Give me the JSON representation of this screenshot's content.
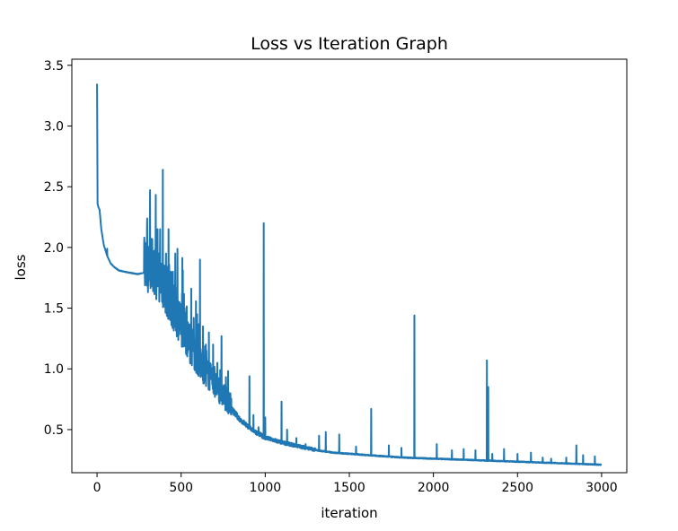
{
  "chart_data": {
    "type": "line",
    "title": "Loss vs Iteration Graph",
    "xlabel": "iteration",
    "ylabel": "loss",
    "xlim": [
      -150,
      3150
    ],
    "ylim": [
      0.145,
      3.55
    ],
    "xticks": [
      0,
      500,
      1000,
      1500,
      2000,
      2500,
      3000
    ],
    "yticks": [
      0.5,
      1.0,
      1.5,
      2.0,
      2.5,
      3.0,
      3.5
    ],
    "xtick_labels": [
      "0",
      "500",
      "1000",
      "1500",
      "2000",
      "2500",
      "3000"
    ],
    "ytick_labels": [
      "0.5",
      "1.0",
      "1.5",
      "2.0",
      "2.5",
      "3.0",
      "3.5"
    ],
    "grid": false,
    "legend": "none",
    "series_color": "#1f77b4",
    "n_points": 3000,
    "series": [
      {
        "x": [
          0,
          3,
          8,
          15,
          25,
          40,
          60,
          80,
          100,
          130,
          160,
          200,
          240,
          280,
          320,
          360,
          400,
          450,
          500,
          550,
          600,
          650,
          700,
          750,
          800,
          850,
          900,
          950,
          1000,
          1100,
          1200,
          1300,
          1400,
          1500,
          1600,
          1700,
          1800,
          1900,
          2000,
          2100,
          2200,
          2300,
          2400,
          2500,
          2600,
          2700,
          2800,
          2900,
          2999
        ],
        "y": [
          3.35,
          2.36,
          2.33,
          2.31,
          2.15,
          2.02,
          1.93,
          1.87,
          1.84,
          1.81,
          1.8,
          1.79,
          1.78,
          1.79,
          1.76,
          1.7,
          1.6,
          1.45,
          1.3,
          1.15,
          1.02,
          0.92,
          0.83,
          0.74,
          0.66,
          0.58,
          0.52,
          0.47,
          0.43,
          0.39,
          0.36,
          0.33,
          0.31,
          0.3,
          0.29,
          0.28,
          0.27,
          0.265,
          0.26,
          0.255,
          0.25,
          0.245,
          0.24,
          0.235,
          0.23,
          0.225,
          0.22,
          0.215,
          0.21
        ]
      }
    ],
    "spikes": [
      {
        "x": 60,
        "y": 1.99
      },
      {
        "x": 290,
        "y": 1.92
      },
      {
        "x": 310,
        "y": 1.95
      },
      {
        "x": 330,
        "y": 1.92
      },
      {
        "x": 360,
        "y": 2.15
      },
      {
        "x": 375,
        "y": 2.15
      },
      {
        "x": 391,
        "y": 2.64
      },
      {
        "x": 410,
        "y": 1.95
      },
      {
        "x": 425,
        "y": 2.15
      },
      {
        "x": 440,
        "y": 1.8
      },
      {
        "x": 465,
        "y": 1.95
      },
      {
        "x": 490,
        "y": 1.55
      },
      {
        "x": 505,
        "y": 1.62
      },
      {
        "x": 530,
        "y": 1.5
      },
      {
        "x": 560,
        "y": 1.66
      },
      {
        "x": 575,
        "y": 1.42
      },
      {
        "x": 595,
        "y": 1.45
      },
      {
        "x": 612,
        "y": 1.9
      },
      {
        "x": 630,
        "y": 1.35
      },
      {
        "x": 650,
        "y": 1.15
      },
      {
        "x": 665,
        "y": 1.3
      },
      {
        "x": 690,
        "y": 1.2
      },
      {
        "x": 715,
        "y": 1.05
      },
      {
        "x": 740,
        "y": 1.27
      },
      {
        "x": 760,
        "y": 0.72
      },
      {
        "x": 810,
        "y": 0.65
      },
      {
        "x": 906,
        "y": 0.94
      },
      {
        "x": 930,
        "y": 0.62
      },
      {
        "x": 960,
        "y": 0.52
      },
      {
        "x": 991,
        "y": 2.2
      },
      {
        "x": 1000,
        "y": 0.6
      },
      {
        "x": 1097,
        "y": 0.73
      },
      {
        "x": 1130,
        "y": 0.5
      },
      {
        "x": 1185,
        "y": 0.43
      },
      {
        "x": 1240,
        "y": 0.38
      },
      {
        "x": 1320,
        "y": 0.45
      },
      {
        "x": 1360,
        "y": 0.48
      },
      {
        "x": 1440,
        "y": 0.46
      },
      {
        "x": 1540,
        "y": 0.36
      },
      {
        "x": 1630,
        "y": 0.67
      },
      {
        "x": 1735,
        "y": 0.37
      },
      {
        "x": 1810,
        "y": 0.35
      },
      {
        "x": 1887,
        "y": 1.44
      },
      {
        "x": 2020,
        "y": 0.38
      },
      {
        "x": 2110,
        "y": 0.33
      },
      {
        "x": 2180,
        "y": 0.34
      },
      {
        "x": 2250,
        "y": 0.33
      },
      {
        "x": 2318,
        "y": 1.07
      },
      {
        "x": 2326,
        "y": 0.85
      },
      {
        "x": 2350,
        "y": 0.3
      },
      {
        "x": 2420,
        "y": 0.34
      },
      {
        "x": 2500,
        "y": 0.3
      },
      {
        "x": 2580,
        "y": 0.31
      },
      {
        "x": 2650,
        "y": 0.27
      },
      {
        "x": 2700,
        "y": 0.26
      },
      {
        "x": 2790,
        "y": 0.27
      },
      {
        "x": 2850,
        "y": 0.37
      },
      {
        "x": 2890,
        "y": 0.29
      },
      {
        "x": 2960,
        "y": 0.28
      }
    ]
  }
}
